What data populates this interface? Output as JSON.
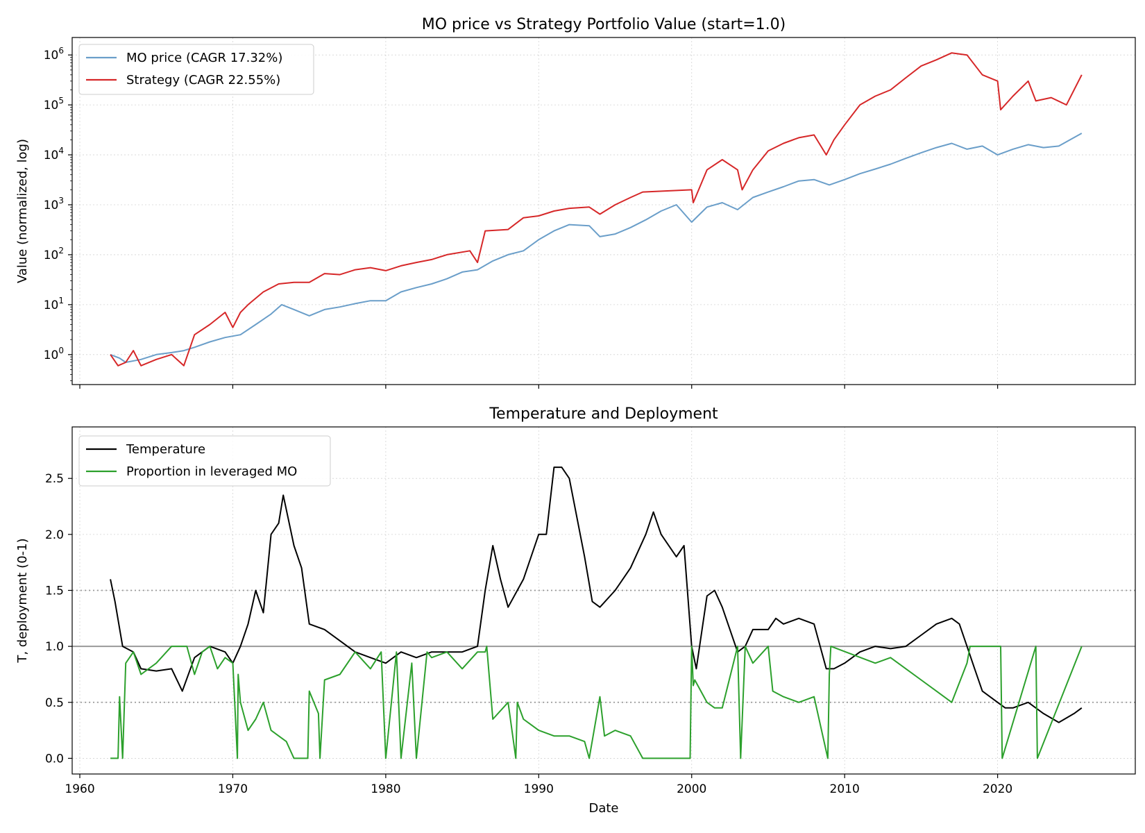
{
  "chart_data": [
    {
      "type": "line",
      "title": "MO price vs Strategy Portfolio Value (start=1.0)",
      "ylabel": "Value (normalized, log)",
      "xlabel": "",
      "y_scale": "log",
      "xlim": [
        1959.5,
        2029.0
      ],
      "ylim_log10": [
        -0.6,
        6.35
      ],
      "x_ticks": [
        1960,
        1970,
        1980,
        1990,
        2000,
        2010,
        2020
      ],
      "y_ticks": [
        {
          "exp": 0,
          "base": "10",
          "sup": "0"
        },
        {
          "exp": 1,
          "base": "10",
          "sup": "1"
        },
        {
          "exp": 2,
          "base": "10",
          "sup": "2"
        },
        {
          "exp": 3,
          "base": "10",
          "sup": "3"
        },
        {
          "exp": 4,
          "base": "10",
          "sup": "4"
        },
        {
          "exp": 5,
          "base": "10",
          "sup": "5"
        },
        {
          "exp": 6,
          "base": "10",
          "sup": "6"
        }
      ],
      "grid": true,
      "legend_position": "top-left",
      "series": [
        {
          "name": "MO price (CAGR 17.32%)",
          "color": "#6a9ec9",
          "x": [
            1962.0,
            1962.6,
            1963.0,
            1964.0,
            1965.0,
            1966.0,
            1966.8,
            1967.5,
            1968.5,
            1969.5,
            1970.5,
            1971.5,
            1972.5,
            1973.2,
            1974.0,
            1975.0,
            1976.0,
            1977.0,
            1978.0,
            1979.0,
            1980.0,
            1981.0,
            1982.0,
            1983.0,
            1984.0,
            1985.0,
            1986.0,
            1987.0,
            1988.0,
            1989.0,
            1990.0,
            1991.0,
            1992.0,
            1993.3,
            1994.0,
            1995.0,
            1996.0,
            1997.0,
            1998.0,
            1999.0,
            2000.0,
            2001.0,
            2002.0,
            2003.0,
            2004.0,
            2005.0,
            2006.0,
            2007.0,
            2008.0,
            2009.0,
            2010.0,
            2011.0,
            2012.0,
            2013.0,
            2014.0,
            2015.0,
            2016.0,
            2017.0,
            2018.0,
            2019.0,
            2020.0,
            2021.0,
            2022.0,
            2023.0,
            2024.0,
            2025.5
          ],
          "values": [
            1.0,
            0.85,
            0.7,
            0.8,
            1.0,
            1.1,
            1.2,
            1.4,
            1.8,
            2.2,
            2.5,
            4.0,
            6.5,
            10.0,
            8.0,
            6.0,
            8.0,
            9.0,
            10.5,
            12.0,
            12.0,
            18.0,
            22.0,
            26.0,
            33.0,
            45.0,
            50.0,
            75.0,
            100.0,
            120.0,
            200.0,
            300.0,
            400.0,
            380.0,
            230.0,
            260.0,
            350.0,
            500.0,
            750.0,
            1000.0,
            450.0,
            900.0,
            1100.0,
            800.0,
            1400.0,
            1800.0,
            2300.0,
            3000.0,
            3200.0,
            2500.0,
            3200.0,
            4200.0,
            5200.0,
            6500.0,
            8500.0,
            11000.0,
            14000.0,
            17000.0,
            13000.0,
            15000.0,
            10000.0,
            13000.0,
            16000.0,
            14000.0,
            15000.0,
            27000.0
          ]
        },
        {
          "name": "Strategy (CAGR 22.55%)",
          "color": "#d62728",
          "x": [
            1962.0,
            1962.5,
            1963.0,
            1963.5,
            1964.0,
            1965.0,
            1966.0,
            1966.8,
            1967.5,
            1968.5,
            1969.5,
            1970.0,
            1970.5,
            1971.0,
            1972.0,
            1973.0,
            1974.0,
            1975.0,
            1976.0,
            1977.0,
            1978.0,
            1979.0,
            1980.0,
            1981.0,
            1982.0,
            1983.0,
            1984.0,
            1985.5,
            1986.0,
            1986.5,
            1988.0,
            1989.0,
            1990.0,
            1991.0,
            1992.0,
            1993.3,
            1994.0,
            1995.0,
            1996.0,
            1996.8,
            2000.0,
            2000.1,
            2001.0,
            2002.0,
            2003.0,
            2003.3,
            2004.0,
            2005.0,
            2006.0,
            2007.0,
            2008.0,
            2008.8,
            2009.3,
            2010.0,
            2011.0,
            2012.0,
            2013.0,
            2014.0,
            2015.0,
            2016.0,
            2017.0,
            2018.0,
            2019.0,
            2020.0,
            2020.2,
            2021.0,
            2022.0,
            2022.5,
            2023.5,
            2024.5,
            2025.5
          ],
          "values": [
            1.0,
            0.6,
            0.7,
            1.2,
            0.6,
            0.8,
            1.0,
            0.6,
            2.5,
            4.0,
            7.0,
            3.5,
            7.0,
            10.0,
            18.0,
            26.0,
            28.0,
            28.0,
            42.0,
            40.0,
            50.0,
            55.0,
            48.0,
            60.0,
            70.0,
            80.0,
            100.0,
            120.0,
            70.0,
            300.0,
            320.0,
            550.0,
            600.0,
            750.0,
            850.0,
            900.0,
            650.0,
            1000.0,
            1400.0,
            1800.0,
            2000.0,
            1100.0,
            5000.0,
            8000.0,
            5000.0,
            2000.0,
            5000.0,
            12000.0,
            17000.0,
            22000.0,
            25000.0,
            10000.0,
            20000.0,
            40000.0,
            100000.0,
            150000.0,
            200000.0,
            350000.0,
            600000.0,
            800000.0,
            1100000.0,
            1000000.0,
            400000.0,
            300000.0,
            80000.0,
            150000.0,
            300000.0,
            120000.0,
            140000.0,
            100000.0,
            400000.0
          ]
        }
      ]
    },
    {
      "type": "line",
      "title": "Temperature and Deployment",
      "xlabel": "Date",
      "ylabel": "T, deployment (0-1)",
      "xlim": [
        1959.5,
        2029.0
      ],
      "ylim": [
        -0.14,
        2.96
      ],
      "x_ticks": [
        1960,
        1970,
        1980,
        1990,
        2000,
        2010,
        2020
      ],
      "y_ticks": [
        "0.0",
        "0.5",
        "1.0",
        "1.5",
        "2.0",
        "2.5"
      ],
      "y_tick_values": [
        0.0,
        0.5,
        1.0,
        1.5,
        2.0,
        2.5
      ],
      "reference_lines": [
        {
          "y": 1.0,
          "style": "solid",
          "color": "#999999"
        },
        {
          "y": 1.5,
          "style": "dotted",
          "color": "#999999"
        },
        {
          "y": 0.5,
          "style": "dotted",
          "color": "#999999"
        }
      ],
      "grid": true,
      "legend_position": "top-left",
      "series": [
        {
          "name": "Temperature",
          "color": "#000000",
          "x": [
            1962.0,
            1962.3,
            1962.8,
            1963.5,
            1964.0,
            1965.0,
            1966.0,
            1966.7,
            1967.5,
            1968.5,
            1969.5,
            1970.0,
            1970.5,
            1971.0,
            1971.5,
            1972.0,
            1972.5,
            1973.0,
            1973.3,
            1974.0,
            1974.5,
            1975.0,
            1976.0,
            1977.0,
            1978.0,
            1979.0,
            1980.0,
            1981.0,
            1982.0,
            1983.0,
            1984.0,
            1985.0,
            1986.0,
            1986.5,
            1987.0,
            1987.5,
            1988.0,
            1989.0,
            1990.0,
            1990.5,
            1991.0,
            1991.5,
            1992.0,
            1993.0,
            1993.5,
            1994.0,
            1995.0,
            1996.0,
            1997.0,
            1997.5,
            1998.0,
            1999.0,
            1999.5,
            2000.0,
            2000.3,
            2001.0,
            2001.5,
            2002.0,
            2003.0,
            2003.5,
            2004.0,
            2005.0,
            2005.5,
            2006.0,
            2007.0,
            2008.0,
            2008.8,
            2009.3,
            2010.0,
            2011.0,
            2012.0,
            2013.0,
            2014.0,
            2015.0,
            2016.0,
            2017.0,
            2017.5,
            2018.0,
            2018.5,
            2019.0,
            2020.0,
            2020.5,
            2021.0,
            2022.0,
            2023.0,
            2024.0,
            2025.0,
            2025.5
          ],
          "values": [
            1.6,
            1.4,
            1.0,
            0.95,
            0.8,
            0.78,
            0.8,
            0.6,
            0.9,
            1.0,
            0.95,
            0.85,
            1.0,
            1.2,
            1.5,
            1.3,
            2.0,
            2.1,
            2.35,
            1.9,
            1.7,
            1.2,
            1.15,
            1.05,
            0.95,
            0.9,
            0.85,
            0.95,
            0.9,
            0.95,
            0.95,
            0.95,
            1.0,
            1.5,
            1.9,
            1.6,
            1.35,
            1.6,
            2.0,
            2.0,
            2.6,
            2.6,
            2.5,
            1.8,
            1.4,
            1.35,
            1.5,
            1.7,
            2.0,
            2.2,
            2.0,
            1.8,
            1.9,
            1.0,
            0.8,
            1.45,
            1.5,
            1.35,
            0.95,
            1.0,
            1.15,
            1.15,
            1.25,
            1.2,
            1.25,
            1.2,
            0.8,
            0.8,
            0.85,
            0.95,
            1.0,
            0.98,
            1.0,
            1.1,
            1.2,
            1.25,
            1.2,
            1.0,
            0.8,
            0.6,
            0.5,
            0.45,
            0.45,
            0.5,
            0.4,
            0.32,
            0.4,
            0.45
          ]
        },
        {
          "name": "Proportion in leveraged MO",
          "color": "#2ca02c",
          "x": [
            1962.0,
            1962.5,
            1962.6,
            1962.8,
            1963.0,
            1963.5,
            1964.0,
            1965.0,
            1966.0,
            1967.0,
            1967.5,
            1968.0,
            1968.5,
            1969.0,
            1969.5,
            1970.0,
            1970.3,
            1970.35,
            1970.5,
            1971.0,
            1971.5,
            1972.0,
            1972.5,
            1973.0,
            1973.5,
            1974.0,
            1974.9,
            1975.0,
            1975.6,
            1975.7,
            1976.0,
            1977.0,
            1978.0,
            1979.0,
            1979.7,
            1980.0,
            1980.7,
            1981.0,
            1981.7,
            1982.0,
            1982.7,
            1983.0,
            1984.0,
            1985.0,
            1986.0,
            1986.5,
            1986.6,
            1987.0,
            1988.0,
            1988.5,
            1988.6,
            1989.0,
            1990.0,
            1991.0,
            1992.0,
            1993.0,
            1993.3,
            1994.0,
            1994.3,
            1995.0,
            1996.0,
            1996.8,
            1997.0,
            1999.9,
            2000.0,
            2000.1,
            2000.2,
            2001.0,
            2001.5,
            2002.0,
            2003.0,
            2003.2,
            2003.5,
            2004.0,
            2005.0,
            2005.3,
            2006.0,
            2007.0,
            2008.0,
            2008.9,
            2009.0,
            2009.1,
            2012.0,
            2013.0,
            2014.0,
            2015.0,
            2016.0,
            2017.0,
            2018.0,
            2018.2,
            2020.2,
            2020.3,
            2022.5,
            2022.6,
            2025.5
          ],
          "values": [
            0.0,
            0.0,
            0.55,
            0.0,
            0.85,
            0.95,
            0.75,
            0.85,
            1.0,
            1.0,
            0.75,
            0.95,
            1.0,
            0.8,
            0.9,
            0.85,
            0.0,
            0.75,
            0.5,
            0.25,
            0.35,
            0.5,
            0.25,
            0.2,
            0.15,
            0.0,
            0.0,
            0.6,
            0.4,
            0.0,
            0.7,
            0.75,
            0.95,
            0.8,
            0.95,
            0.0,
            0.95,
            0.0,
            0.85,
            0.0,
            0.95,
            0.9,
            0.95,
            0.8,
            0.95,
            0.95,
            1.0,
            0.35,
            0.5,
            0.0,
            0.5,
            0.35,
            0.25,
            0.2,
            0.2,
            0.15,
            0.0,
            0.55,
            0.2,
            0.25,
            0.2,
            0.0,
            0.0,
            0.0,
            1.0,
            0.65,
            0.7,
            0.5,
            0.45,
            0.45,
            1.0,
            0.0,
            1.0,
            0.85,
            1.0,
            0.6,
            0.55,
            0.5,
            0.55,
            0.0,
            0.75,
            1.0,
            0.85,
            0.9,
            0.8,
            0.7,
            0.6,
            0.5,
            0.85,
            1.0,
            1.0,
            0.0,
            1.0,
            0.0,
            1.0
          ]
        }
      ]
    }
  ]
}
